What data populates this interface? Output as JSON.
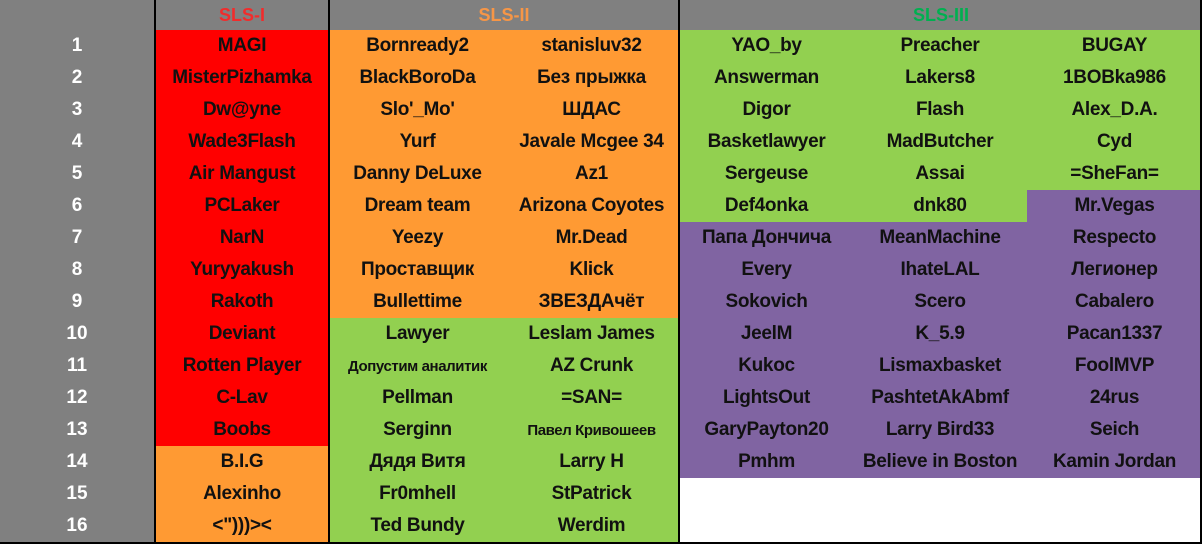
{
  "colors": {
    "r": "#ff0000",
    "o": "#ff9a33",
    "g": "#92d050",
    "p": "#8064a2",
    "w": "#ffffff",
    "gray": "#808080"
  },
  "headers": [
    {
      "label": "SLS-I",
      "color": "#f22b2b"
    },
    {
      "label": "SLS-II",
      "color": "#f79646"
    },
    {
      "label": "SLS-III",
      "color": "#00b050"
    }
  ],
  "row_numbers": [
    "1",
    "2",
    "3",
    "4",
    "5",
    "6",
    "7",
    "8",
    "9",
    "10",
    "11",
    "12",
    "13",
    "14",
    "15",
    "16"
  ],
  "columns": [
    {
      "group": "SLS-I",
      "cells": [
        {
          "name": "MAGI",
          "c": "r"
        },
        {
          "name": "MisterPizhamka",
          "c": "r"
        },
        {
          "name": "Dw@yne",
          "c": "r"
        },
        {
          "name": "Wade3Flash",
          "c": "r"
        },
        {
          "name": "Air Mangust",
          "c": "r"
        },
        {
          "name": "PCLaker",
          "c": "r"
        },
        {
          "name": "NarN",
          "c": "r"
        },
        {
          "name": "Yuryyakush",
          "c": "r"
        },
        {
          "name": "Rakoth",
          "c": "r"
        },
        {
          "name": "Deviant",
          "c": "r"
        },
        {
          "name": "Rotten Player",
          "c": "r"
        },
        {
          "name": "C-Lav",
          "c": "r"
        },
        {
          "name": "Boobs",
          "c": "r"
        },
        {
          "name": "B.I.G",
          "c": "o"
        },
        {
          "name": "Alexinho",
          "c": "o"
        },
        {
          "name": "<\")))><",
          "c": "o"
        }
      ]
    },
    {
      "group": "SLS-II",
      "cells": [
        {
          "name": "Bornready2",
          "c": "o"
        },
        {
          "name": "BlackBoroDa",
          "c": "o"
        },
        {
          "name": "Slo'_Mo'",
          "c": "o"
        },
        {
          "name": "Yurf",
          "c": "o"
        },
        {
          "name": "Danny DeLuxe",
          "c": "o"
        },
        {
          "name": "Dream team",
          "c": "o"
        },
        {
          "name": "Yeezy",
          "c": "o"
        },
        {
          "name": "Проставщик",
          "c": "o"
        },
        {
          "name": "Bullettime",
          "c": "o"
        },
        {
          "name": "Lawyer",
          "c": "g"
        },
        {
          "name": "Допустим аналитик",
          "c": "g",
          "small": true
        },
        {
          "name": "Pellman",
          "c": "g"
        },
        {
          "name": "Serginn",
          "c": "g"
        },
        {
          "name": "Дядя Витя",
          "c": "g"
        },
        {
          "name": "Fr0mhell",
          "c": "g"
        },
        {
          "name": "Ted Bundy",
          "c": "g"
        }
      ]
    },
    {
      "group": "SLS-II",
      "cells": [
        {
          "name": "stanisluv32",
          "c": "o"
        },
        {
          "name": "Без прыжка",
          "c": "o"
        },
        {
          "name": "ШДАС",
          "c": "o"
        },
        {
          "name": "Javale Mcgee 34",
          "c": "o"
        },
        {
          "name": "Az1",
          "c": "o"
        },
        {
          "name": "Arizona Coyotes",
          "c": "o"
        },
        {
          "name": "Mr.Dead",
          "c": "o"
        },
        {
          "name": "Klick",
          "c": "o"
        },
        {
          "name": "ЗВЕЗДАчёт",
          "c": "o"
        },
        {
          "name": "Leslam James",
          "c": "g"
        },
        {
          "name": "AZ Crunk",
          "c": "g"
        },
        {
          "name": "=SAN=",
          "c": "g"
        },
        {
          "name": "Павел Кривошеев",
          "c": "g",
          "small": true
        },
        {
          "name": "Larry H",
          "c": "g"
        },
        {
          "name": "StPatrick",
          "c": "g"
        },
        {
          "name": "Werdim",
          "c": "g"
        }
      ]
    },
    {
      "group": "SLS-III",
      "cells": [
        {
          "name": "YAO_by",
          "c": "g"
        },
        {
          "name": "Answerman",
          "c": "g"
        },
        {
          "name": "Digor",
          "c": "g"
        },
        {
          "name": "Basketlawyer",
          "c": "g"
        },
        {
          "name": "Sergeuse",
          "c": "g"
        },
        {
          "name": "Def4onka",
          "c": "g"
        },
        {
          "name": "Папа Дончича",
          "c": "p"
        },
        {
          "name": "Every",
          "c": "p"
        },
        {
          "name": "Sokovich",
          "c": "p"
        },
        {
          "name": "JeelM",
          "c": "p"
        },
        {
          "name": "Kukoc",
          "c": "p"
        },
        {
          "name": "LightsOut",
          "c": "p"
        },
        {
          "name": "GaryPayton20",
          "c": "p"
        },
        {
          "name": "Pmhm",
          "c": "p"
        },
        {
          "name": "",
          "c": "w"
        },
        {
          "name": "",
          "c": "w"
        }
      ]
    },
    {
      "group": "SLS-III",
      "cells": [
        {
          "name": "Preacher",
          "c": "g"
        },
        {
          "name": "Lakers8",
          "c": "g"
        },
        {
          "name": "Flash",
          "c": "g"
        },
        {
          "name": "MadButcher",
          "c": "g"
        },
        {
          "name": "Assai",
          "c": "g"
        },
        {
          "name": "dnk80",
          "c": "g"
        },
        {
          "name": "MeanMachine",
          "c": "p"
        },
        {
          "name": "IhateLAL",
          "c": "p"
        },
        {
          "name": "Scero",
          "c": "p"
        },
        {
          "name": "K_5.9",
          "c": "p"
        },
        {
          "name": "Lismaxbasket",
          "c": "p"
        },
        {
          "name": "PashtetAkAbmf",
          "c": "p"
        },
        {
          "name": "Larry Bird33",
          "c": "p"
        },
        {
          "name": "Believe in Boston",
          "c": "p"
        },
        {
          "name": "",
          "c": "w"
        },
        {
          "name": "",
          "c": "w"
        }
      ]
    },
    {
      "group": "SLS-III",
      "cells": [
        {
          "name": "BUGAY",
          "c": "g"
        },
        {
          "name": "1BOBka986",
          "c": "g"
        },
        {
          "name": "Alex_D.A.",
          "c": "g"
        },
        {
          "name": "Cyd",
          "c": "g"
        },
        {
          "name": "=SheFan=",
          "c": "g"
        },
        {
          "name": "Mr.Vegas",
          "c": "p"
        },
        {
          "name": "Respecto",
          "c": "p"
        },
        {
          "name": "Легионер",
          "c": "p"
        },
        {
          "name": "Cabalero",
          "c": "p"
        },
        {
          "name": "Pacan1337",
          "c": "p"
        },
        {
          "name": "FoolMVP",
          "c": "p"
        },
        {
          "name": "24rus",
          "c": "p"
        },
        {
          "name": "Seich",
          "c": "p"
        },
        {
          "name": "Kamin Jordan",
          "c": "p"
        },
        {
          "name": "",
          "c": "w"
        },
        {
          "name": "",
          "c": "w"
        }
      ]
    }
  ]
}
